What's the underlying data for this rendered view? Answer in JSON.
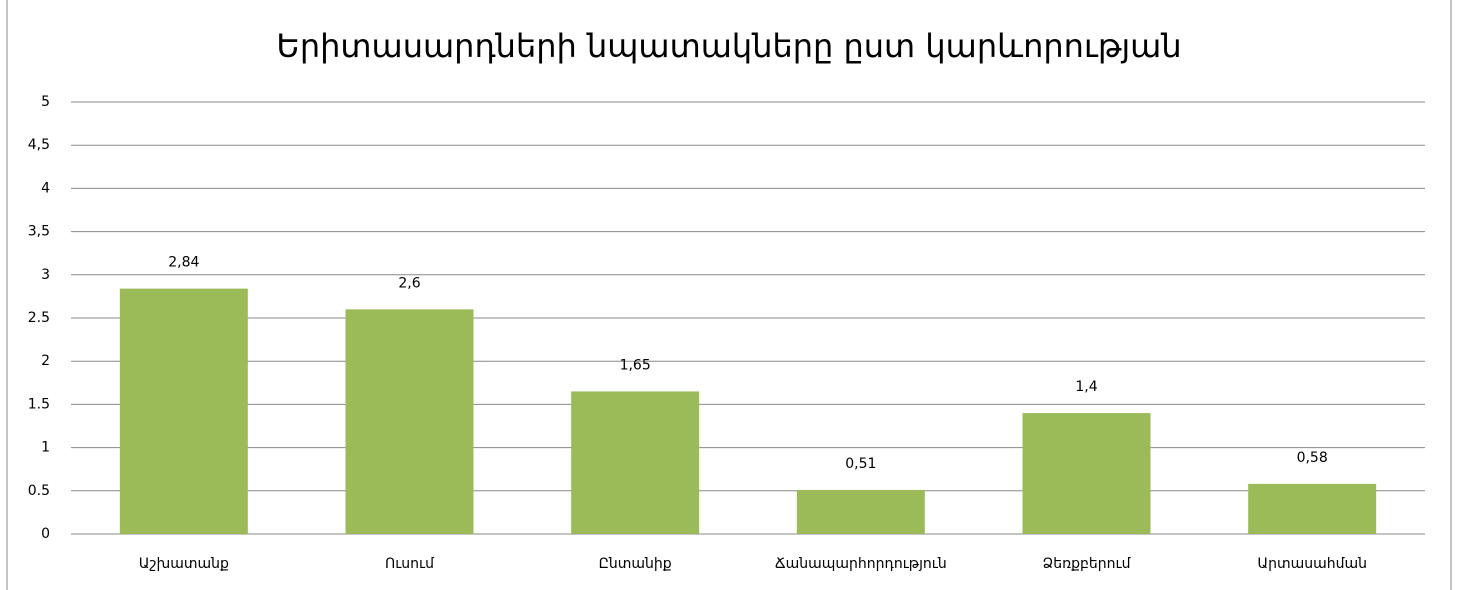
{
  "chart_data": {
    "type": "bar",
    "title": "Երիտասարդների նպատակները ըստ կարևորության",
    "categories": [
      "Աշխատանք",
      "Ուսում",
      "Ընտանիք",
      "Ճանապարհորդություն",
      "Ձեռքբերում",
      "Արտասահման"
    ],
    "values": [
      2.84,
      2.6,
      1.65,
      0.51,
      1.4,
      0.58
    ],
    "value_labels": [
      "2,84",
      "2,6",
      "1,65",
      "0,51",
      "1,4",
      "0,58"
    ],
    "color": "#9bbb59",
    "ylim": [
      0,
      5
    ],
    "yticks": [
      0,
      0.5,
      1,
      1.5,
      2,
      2.5,
      3,
      {
        "value": 3.5,
        "label": "3,5"
      },
      4,
      {
        "value": 4.5,
        "label": "4,5"
      },
      5
    ],
    "grid": true
  }
}
